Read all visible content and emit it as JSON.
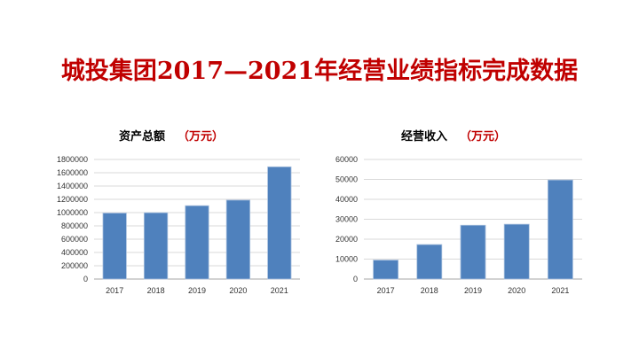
{
  "title": "城投集团2017—2021年经营业绩指标完成数据",
  "chart_data": [
    {
      "type": "bar",
      "title": "资产总额",
      "unit": "（万元）",
      "categories": [
        "2017",
        "2018",
        "2019",
        "2020",
        "2021"
      ],
      "values": [
        993000,
        998000,
        1104000,
        1188000,
        1689000
      ],
      "ylim": [
        0,
        1800000
      ],
      "yticks": [
        0,
        200000,
        400000,
        600000,
        800000,
        1000000,
        1200000,
        1400000,
        1600000,
        1800000
      ],
      "grid": true,
      "bar_color": "#4f81bd"
    },
    {
      "type": "bar",
      "title": "经营收入",
      "unit": "（万元）",
      "categories": [
        "2017",
        "2018",
        "2019",
        "2020",
        "2021"
      ],
      "values": [
        9500,
        17300,
        27000,
        27500,
        49700
      ],
      "ylim": [
        0,
        60000
      ],
      "yticks": [
        0,
        10000,
        20000,
        30000,
        40000,
        50000,
        60000
      ],
      "grid": true,
      "bar_color": "#4f81bd"
    }
  ]
}
